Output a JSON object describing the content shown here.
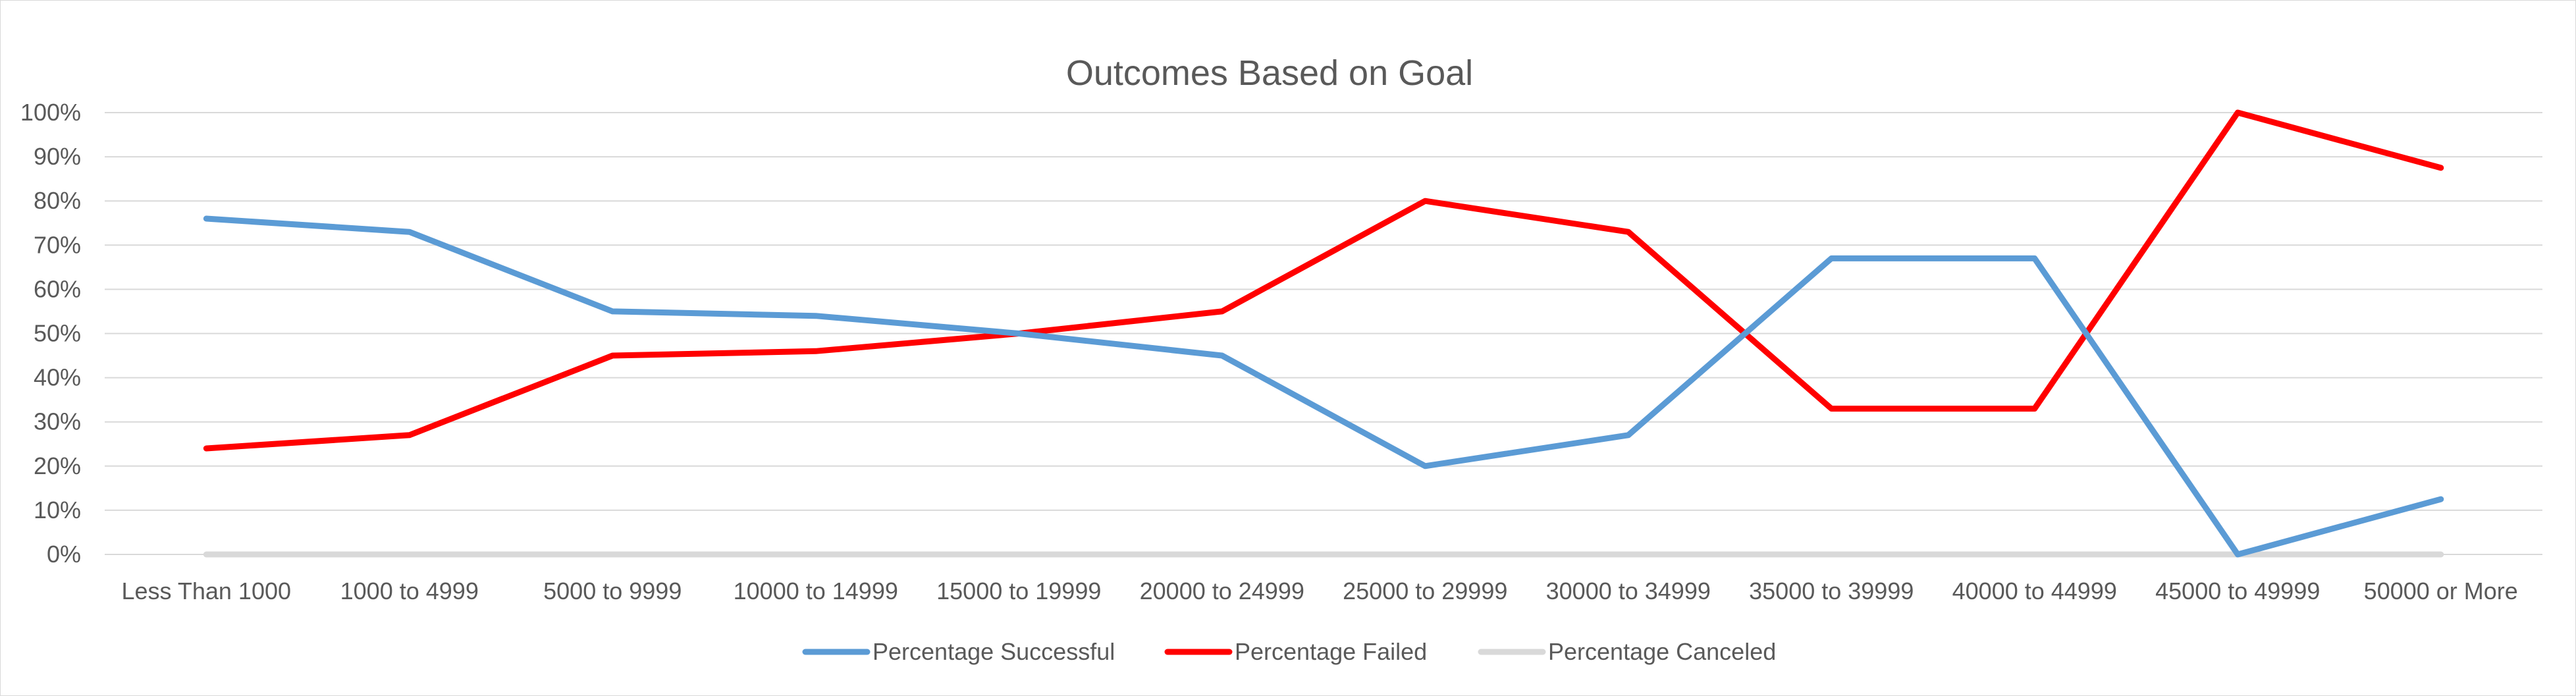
{
  "chart_data": {
    "type": "line",
    "title": "Outcomes Based on Goal",
    "xlabel": "",
    "ylabel": "",
    "categories": [
      "Less Than 1000",
      "1000 to 4999",
      "5000 to 9999",
      "10000 to 14999",
      "15000 to 19999",
      "20000 to 24999",
      "25000 to 29999",
      "30000 to 34999",
      "35000 to 39999",
      "40000 to 44999",
      "45000 to 49999",
      "50000 or More"
    ],
    "y_ticks": [
      "0%",
      "10%",
      "20%",
      "30%",
      "40%",
      "50%",
      "60%",
      "70%",
      "80%",
      "90%",
      "100%"
    ],
    "ylim": [
      0,
      100
    ],
    "grid": "horizontal",
    "legend_position": "bottom",
    "series": [
      {
        "name": "Percentage Successful",
        "color": "#5B9BD5",
        "values": [
          76,
          73,
          55,
          54,
          50,
          45,
          20,
          27,
          67,
          67,
          0,
          12.5
        ]
      },
      {
        "name": "Percentage Failed",
        "color": "#FF0000",
        "values": [
          24,
          27,
          45,
          46,
          50,
          55,
          80,
          73,
          33,
          33,
          100,
          87.5
        ]
      },
      {
        "name": "Percentage Canceled",
        "color": "#D9D9D9",
        "values": [
          0,
          0,
          0,
          0,
          0,
          0,
          0,
          0,
          0,
          0,
          0,
          0
        ]
      }
    ]
  }
}
